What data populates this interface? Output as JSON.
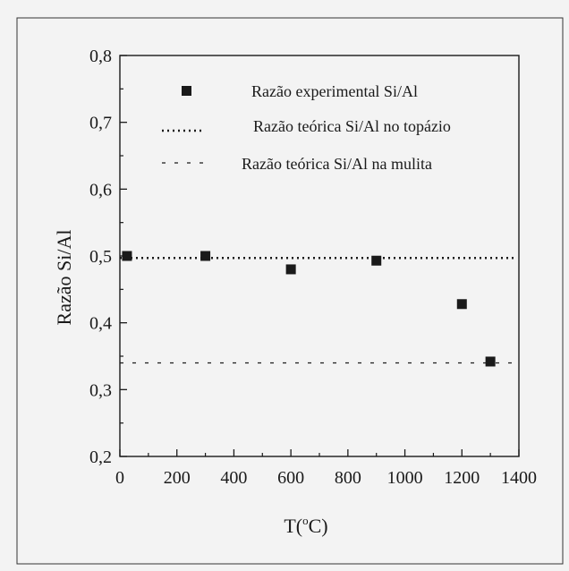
{
  "chart_data": {
    "type": "scatter",
    "xlabel": "T(",
    "xlabel_sup": "o",
    "xlabel_unit": "C)",
    "ylabel": "Razão Si/Al",
    "xlim": [
      0,
      1400
    ],
    "ylim": [
      0.2,
      0.8
    ],
    "x_ticks": [
      0,
      200,
      400,
      600,
      800,
      1000,
      1200,
      1400
    ],
    "x_tick_labels": [
      "0",
      "200",
      "400",
      "600",
      "800",
      "1000",
      "1200",
      "1400"
    ],
    "y_ticks": [
      0.2,
      0.3,
      0.4,
      0.5,
      0.6,
      0.7,
      0.8
    ],
    "y_tick_labels": [
      "0,2",
      "0,3",
      "0,4",
      "0,5",
      "0,6",
      "0,7",
      "0,8"
    ],
    "grid": false,
    "legend_position": "top-right",
    "series": [
      {
        "name": "Razão experimental Si/Al",
        "kind": "points",
        "marker": "square",
        "x": [
          25,
          300,
          600,
          900,
          1200,
          1300
        ],
        "y": [
          0.5,
          0.5,
          0.48,
          0.493,
          0.428,
          0.342
        ]
      },
      {
        "name": "Razão teórica Si/Al no topázio",
        "kind": "hline",
        "style": "dotted",
        "y": 0.497
      },
      {
        "name": "Razão teórica Si/Al na mulita",
        "kind": "hline",
        "style": "dashed",
        "y": 0.34
      }
    ],
    "colors": {
      "marker": "#1a1a1a",
      "lines": "#1a1a1a",
      "axis": "#1a1a1a",
      "background": "#f3f3f3"
    }
  }
}
